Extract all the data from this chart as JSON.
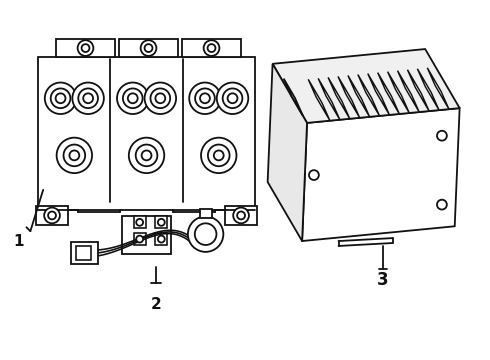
{
  "background_color": "#ffffff",
  "line_color": "#111111",
  "line_width": 1.3,
  "label_1": "1",
  "label_2": "2",
  "label_3": "3",
  "label_fontsize": 11,
  "fig_width": 4.9,
  "fig_height": 3.6,
  "dpi": 100
}
